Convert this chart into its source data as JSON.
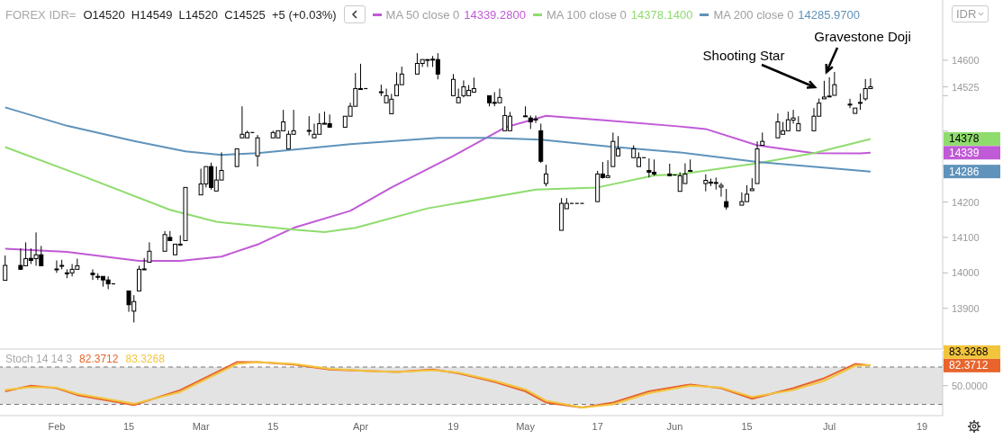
{
  "chart_data": [
    {
      "type": "candlestick",
      "title": "FOREX IDR=",
      "subtitle": "O14520  H14549  L14520  C14525  +5 (+0.03%)",
      "ylabel": "IDR",
      "legend": "top",
      "tick_labels": "y",
      "color": "#000000",
      "x": [
        "--01-22",
        "--01-25",
        "--01-26",
        "--01-27",
        "--01-28",
        "--01-29",
        "--02-01",
        "--02-02",
        "--02-03",
        "--02-04",
        "--02-05",
        "--02-08",
        "--02-09",
        "--02-10",
        "--02-11",
        "--02-12",
        "--02-15",
        "--02-16",
        "--02-17",
        "--02-18",
        "--02-19",
        "--02-22",
        "--02-23",
        "--02-24",
        "--02-25",
        "--02-26",
        "--03-01",
        "--03-02",
        "--03-03",
        "--03-04",
        "--03-05",
        "--03-08",
        "--03-09",
        "--03-10",
        "--03-11",
        "--03-12",
        "--03-15",
        "--03-16",
        "--03-17",
        "--03-18",
        "--03-19",
        "--03-22",
        "--03-23",
        "--03-24",
        "--03-25",
        "--03-26",
        "--03-29",
        "--03-30",
        "--03-31",
        "--04-01",
        "--04-02",
        "--04-05",
        "--04-06",
        "--04-07",
        "--04-08",
        "--04-09",
        "--04-12",
        "--04-13",
        "--04-14",
        "--04-15",
        "--04-16",
        "--04-19",
        "--04-20",
        "--04-21",
        "--04-22",
        "--04-23",
        "--04-26",
        "--04-27",
        "--04-28",
        "--04-29",
        "--04-30",
        "--05-03",
        "--05-04",
        "--05-05",
        "--05-06",
        "--05-07",
        "--05-10",
        "--05-11",
        "--05-12",
        "--05-13",
        "--05-14",
        "--05-17",
        "--05-18",
        "--05-19",
        "--05-20",
        "--05-21",
        "--05-24",
        "--05-25",
        "--05-26",
        "--05-27",
        "--05-28",
        "--05-31",
        "--06-01",
        "--06-02",
        "--06-03",
        "--06-04",
        "--06-07",
        "--06-08",
        "--06-09",
        "--06-10",
        "--06-11",
        "--06-14",
        "--06-15",
        "--06-16",
        "--06-17",
        "--06-18",
        "--06-21",
        "--06-22",
        "--06-23",
        "--06-24",
        "--06-25",
        "--06-28",
        "--06-29",
        "--06-30",
        "--07-01",
        "--07-02",
        "--07-05",
        "--07-06",
        "--07-07",
        "--07-08",
        "--07-09"
      ],
      "ohlc": [
        [
          13979,
          14049,
          13979,
          14021
        ],
        [
          14021,
          14069,
          14010,
          14010
        ],
        [
          14020,
          14086,
          14020,
          14040
        ],
        [
          14041,
          14069,
          14025,
          14035
        ],
        [
          14040,
          14114,
          14020,
          14051
        ],
        [
          14051,
          14076,
          14020,
          14020
        ],
        [
          14011,
          14035,
          14000,
          14009
        ],
        [
          14020,
          14037,
          14010,
          14021
        ],
        [
          14000,
          14010,
          13985,
          13999
        ],
        [
          14000,
          14025,
          13990,
          14010
        ],
        [
          14010,
          14040,
          14010,
          14020
        ],
        [
          13999,
          14010,
          13980,
          13995
        ],
        [
          13990,
          13999,
          13980,
          13989
        ],
        [
          13990,
          13990,
          13961,
          13980
        ],
        [
          13980,
          13990,
          13954,
          13969
        ],
        [
          13969,
          13969,
          13969,
          13969
        ],
        [
          13949,
          13949,
          13890,
          13910
        ],
        [
          13892,
          13937,
          13860,
          13919
        ],
        [
          13949,
          14020,
          13949,
          14010
        ],
        [
          14010,
          14042,
          14010,
          14011
        ],
        [
          14030,
          14086,
          14030,
          14061
        ],
        [
          14061,
          14118,
          14061,
          14108
        ],
        [
          14100,
          14118,
          14091,
          14091
        ],
        [
          14051,
          14081,
          14051,
          14081
        ],
        [
          14080,
          14106,
          14076,
          14081
        ],
        [
          14091,
          14241,
          14091,
          14241
        ],
        [
          14220,
          14294,
          14220,
          14251
        ],
        [
          14251,
          14300,
          14241,
          14300
        ],
        [
          14300,
          14311,
          14235,
          14241
        ],
        [
          14231,
          14300,
          14231,
          14262
        ],
        [
          14262,
          14340,
          14262,
          14289
        ],
        [
          14300,
          14350,
          14300,
          14350
        ],
        [
          14381,
          14470,
          14381,
          14391
        ],
        [
          14381,
          14401,
          14381,
          14396
        ],
        [
          14396,
          14396,
          14396,
          14396
        ],
        [
          14330,
          14389,
          14300,
          14381
        ],
        [
          14381,
          14401,
          14381,
          14396
        ],
        [
          14381,
          14401,
          14381,
          14401
        ],
        [
          14401,
          14460,
          14401,
          14426
        ],
        [
          14350,
          14401,
          14350,
          14391
        ],
        [
          14391,
          14460,
          14391,
          14401
        ],
        [
          14401,
          14442,
          14388,
          14402
        ],
        [
          14381,
          14421,
          14381,
          14391
        ],
        [
          14391,
          14450,
          14391,
          14421
        ],
        [
          14421,
          14455,
          14421,
          14422
        ],
        [
          14421,
          14447,
          14411,
          14411
        ],
        [
          14411,
          14442,
          14411,
          14442
        ],
        [
          14442,
          14480,
          14442,
          14470
        ],
        [
          14470,
          14564,
          14470,
          14520
        ],
        [
          14520,
          14590,
          14520,
          14520
        ],
        [
          14520,
          14520,
          14520,
          14520
        ],
        [
          14510,
          14531,
          14499,
          14511
        ],
        [
          14480,
          14520,
          14480,
          14500
        ],
        [
          14449,
          14505,
          14449,
          14490
        ],
        [
          14500,
          14566,
          14500,
          14531
        ],
        [
          14531,
          14582,
          14531,
          14561
        ],
        [
          14561,
          14620,
          14561,
          14591
        ],
        [
          14591,
          14602,
          14581,
          14602
        ],
        [
          14602,
          14602,
          14581,
          14602
        ],
        [
          14602,
          14612,
          14581,
          14603
        ],
        [
          14602,
          14620,
          14546,
          14561
        ],
        [
          14500,
          14561,
          14500,
          14546
        ],
        [
          14480,
          14520,
          14480,
          14495
        ],
        [
          14500,
          14543,
          14495,
          14525
        ],
        [
          14500,
          14530,
          14500,
          14515
        ],
        [
          14510,
          14551,
          14510,
          14520
        ],
        [
          14500,
          14500,
          14470,
          14480
        ],
        [
          14480,
          14510,
          14470,
          14481
        ],
        [
          14480,
          14520,
          14480,
          14495
        ],
        [
          14401,
          14470,
          14401,
          14444
        ],
        [
          14401,
          14454,
          14401,
          14442
        ],
        [
          14443,
          14470,
          14443,
          14443
        ],
        [
          14437,
          14444,
          14406,
          14426
        ],
        [
          14433,
          14444,
          14423,
          14434
        ],
        [
          14401,
          14421,
          14310,
          14315
        ],
        [
          14252,
          14305,
          14244,
          14279
        ],
        [
          14120,
          14211,
          14120,
          14196
        ],
        [
          14181,
          14211,
          14181,
          14196
        ],
        [
          14196,
          14196,
          14196,
          14196
        ],
        [
          14196,
          14196,
          14196,
          14196
        ],
        [
          14196,
          14196,
          14196,
          14196
        ],
        [
          14201,
          14288,
          14201,
          14279
        ],
        [
          14279,
          14313,
          14266,
          14269
        ],
        [
          14269,
          14318,
          14269,
          14274
        ],
        [
          14300,
          14396,
          14300,
          14371
        ],
        [
          14330,
          14386,
          14330,
          14350
        ],
        [
          14325,
          14360,
          14325,
          14350
        ],
        [
          14300,
          14340,
          14300,
          14325
        ],
        [
          14325,
          14325,
          14325,
          14325
        ],
        [
          14289,
          14323,
          14269,
          14284
        ],
        [
          14284,
          14320,
          14274,
          14279
        ],
        [
          14279,
          14308,
          14274,
          14274
        ],
        [
          14276,
          14276,
          14276,
          14276
        ],
        [
          14230,
          14284,
          14230,
          14274
        ],
        [
          14252,
          14309,
          14252,
          14279
        ],
        [
          14289,
          14320,
          14289,
          14289
        ],
        [
          14252,
          14278,
          14230,
          14261
        ],
        [
          14255,
          14266,
          14245,
          14256
        ],
        [
          14254,
          14269,
          14235,
          14255
        ],
        [
          14242,
          14254,
          14215,
          14247
        ],
        [
          14201,
          14237,
          14178,
          14186
        ],
        [
          14191,
          14227,
          14191,
          14201
        ],
        [
          14201,
          14247,
          14201,
          14222
        ],
        [
          14232,
          14267,
          14232,
          14237
        ],
        [
          14252,
          14371,
          14252,
          14350
        ],
        [
          14360,
          14396,
          14360,
          14371
        ],
        [
          14381,
          14450,
          14381,
          14426
        ],
        [
          14391,
          14426,
          14391,
          14401
        ],
        [
          14401,
          14455,
          14401,
          14432
        ],
        [
          14431,
          14460,
          14421,
          14437
        ],
        [
          14401,
          14442,
          14401,
          14421
        ],
        [
          14401,
          14465,
          14401,
          14442
        ],
        [
          14442,
          14492,
          14442,
          14479
        ],
        [
          14491,
          14542,
          14491,
          14496
        ],
        [
          14499,
          14552,
          14499,
          14499
        ],
        [
          14501,
          14567,
          14501,
          14531
        ],
        [
          14476,
          14491,
          14465,
          14475
        ],
        [
          14450,
          14465,
          14450,
          14465
        ],
        [
          14480,
          14506,
          14460,
          14481
        ],
        [
          14491,
          14547,
          14486,
          14520
        ],
        [
          14520,
          14549,
          14520,
          14525
        ]
      ],
      "series": [
        {
          "name": "MA 50 close 0",
          "type": "line",
          "color": "#c05ad6",
          "x": [
            "--01-22",
            "--02-03",
            "--02-17",
            "--02-25",
            "--03-05",
            "--03-12",
            "--03-19",
            "--03-30",
            "--04-07",
            "--04-19",
            "--04-29",
            "--05-07",
            "--05-19",
            "--06-02",
            "--06-07",
            "--06-17",
            "--06-28",
            "--07-07",
            "--07-09"
          ],
          "values": [
            14068,
            14059,
            14034,
            14034,
            14046,
            14080,
            14127,
            14175,
            14241,
            14330,
            14410,
            14443,
            14430,
            14413,
            14406,
            14360,
            14338,
            14337,
            14339
          ]
        },
        {
          "name": "MA 100 close 0",
          "type": "line",
          "color": "#8fdc6e",
          "x": [
            "--01-22",
            "--02-05",
            "--02-23",
            "--03-04",
            "--03-19",
            "--03-25",
            "--03-31",
            "--04-14",
            "--05-05",
            "--05-17",
            "--05-28",
            "--06-02",
            "--06-17",
            "--06-28",
            "--07-09"
          ],
          "values": [
            14355,
            14279,
            14178,
            14144,
            14122,
            14115,
            14127,
            14182,
            14235,
            14241,
            14275,
            14278,
            14309,
            14338,
            14378
          ]
        },
        {
          "name": "MA 200 close 0",
          "type": "line",
          "color": "#5f93bb",
          "x": [
            "--01-22",
            "--02-03",
            "--02-16",
            "--02-26",
            "--03-05",
            "--03-12",
            "--03-30",
            "--04-16",
            "--04-26",
            "--05-06",
            "--05-19",
            "--06-02",
            "--06-17",
            "--07-09"
          ],
          "values": [
            14467,
            14415,
            14372,
            14343,
            14333,
            14338,
            14363,
            14381,
            14381,
            14376,
            14357,
            14340,
            14313,
            14286
          ]
        }
      ],
      "annotations": [
        "14339.2800",
        "14378.1400",
        "14285.9700",
        "14339",
        "14378",
        "14286",
        "Shooting Star",
        "Gravestone Doji"
      ],
      "xlim": [
        "--01-21",
        "--07-23"
      ],
      "ylim": [
        13785,
        14770
      ],
      "yticks": [
        13900,
        14000,
        14100,
        14200,
        {
          "value": 14300,
          "label": null
        },
        {
          "value": 14400,
          "label": null
        },
        {
          "value": 14500,
          "label": null
        },
        14525,
        14600
      ]
    },
    {
      "type": "line",
      "title": "Stoch 14 14 3",
      "x": [
        "--01-22",
        "--01-27",
        "--02-01",
        "--02-05",
        "--02-16",
        "--02-25",
        "--03-08",
        "--03-12",
        "--03-19",
        "--03-26",
        "--04-02",
        "--04-08",
        "--04-15",
        "--04-20",
        "--04-27",
        "--05-03",
        "--05-07",
        "--05-14",
        "--05-20",
        "--05-27",
        "--06-04",
        "--06-10",
        "--06-16",
        "--06-24",
        "--06-30",
        "--07-06",
        "--07-09"
      ],
      "series": [
        {
          "color": "#e8642c",
          "values": [
            41,
            50,
            46,
            35,
            19,
            43,
            88,
            88,
            84,
            76,
            74,
            72,
            76,
            70,
            56,
            41,
            23,
            15,
            23,
            41,
            52,
            46,
            29,
            46,
            62,
            85,
            82.3712
          ]
        },
        {
          "color": "#f2c53d",
          "values": [
            43,
            48,
            47,
            37,
            21,
            40,
            85,
            88,
            85,
            77,
            74,
            72,
            75,
            71,
            58,
            44,
            26,
            15,
            20,
            38,
            50,
            47,
            32,
            43,
            58,
            82,
            83
          ]
        }
      ],
      "annotations": [
        "82.3712",
        "83.3268",
        "83.3268"
      ],
      "bands": [
        {
          "axis": "y",
          "from": 20,
          "to": 80,
          "color": "#e3e3e3"
        }
      ],
      "ref_lines": [
        {
          "axis": "y",
          "value": 80,
          "line_style": "dashed"
        },
        {
          "axis": "y",
          "value": 20,
          "line_style": "dashed"
        }
      ],
      "xlim": [
        "--01-21",
        "--07-23"
      ],
      "ylim": [
        2,
        106
      ],
      "xticks": [
        {
          "value": "--02-01",
          "label": "Feb"
        },
        {
          "value": "--02-15",
          "label": "15"
        },
        {
          "value": "--03-01",
          "label": "Mar"
        },
        {
          "value": "--03-15",
          "label": "15"
        },
        {
          "value": "--04-01",
          "label": "Apr"
        },
        {
          "value": "--04-19",
          "label": "19"
        },
        {
          "value": "--05-03",
          "label": "May"
        },
        {
          "value": "--05-17",
          "label": "17"
        },
        {
          "value": "--06-01",
          "label": "Jun"
        },
        {
          "value": "--06-15",
          "label": "15"
        },
        {
          "value": "--07-01",
          "label": "Jul"
        },
        {
          "value": "--07-19",
          "label": "19"
        }
      ],
      "yticks": [
        {
          "value": 50,
          "label": "50.0000"
        },
        {
          "value": 82.3712,
          "label": "82.3712"
        }
      ]
    }
  ]
}
